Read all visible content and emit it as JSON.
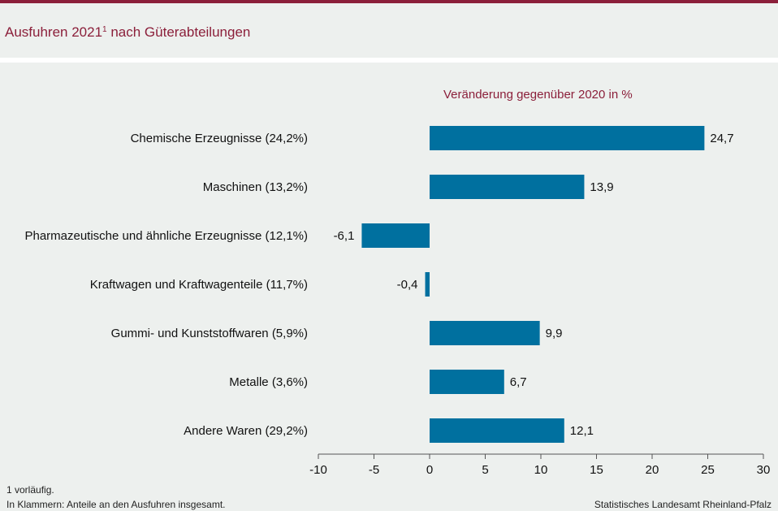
{
  "header": {
    "title_main": "Ausfuhren 2021",
    "title_sup": "1",
    "title_rest": " nach Güterabteilungen"
  },
  "colors": {
    "accent": "#8b1f3a",
    "bar": "#00709f",
    "background": "#edf0ee"
  },
  "chart_data": {
    "type": "bar",
    "orientation": "horizontal",
    "title": "Ausfuhren 2021 nach Güterabteilungen",
    "subtitle": "Veränderung gegenüber 2020 in %",
    "categories": [
      "Chemische Erzeugnisse (24,2%)",
      "Maschinen (13,2%)",
      "Pharmazeutische und ähnliche Erzeugnisse (12,1%)",
      "Kraftwagen und Kraftwagenteile (11,7%)",
      "Gummi- und Kunststoffwaren (5,9%)",
      "Metalle (3,6%)",
      "Andere Waren (29,2%)"
    ],
    "values": [
      24.7,
      13.9,
      -6.1,
      -0.4,
      9.9,
      6.7,
      12.1
    ],
    "value_labels": [
      "24,7",
      "13,9",
      "-6,1",
      "-0,4",
      "9,9",
      "6,7",
      "12,1"
    ],
    "xlim": [
      -10,
      30
    ],
    "xticks": [
      -10,
      -5,
      0,
      5,
      10,
      15,
      20,
      25,
      30
    ],
    "xlabel": "",
    "ylabel": "",
    "grid": false,
    "legend": "none"
  },
  "footer": {
    "footnote": "1 vorläufig.",
    "note": "In Klammern: Anteile an den Ausfuhren insgesamt.",
    "source": "Statistisches Landesamt Rheinland-Pfalz"
  }
}
